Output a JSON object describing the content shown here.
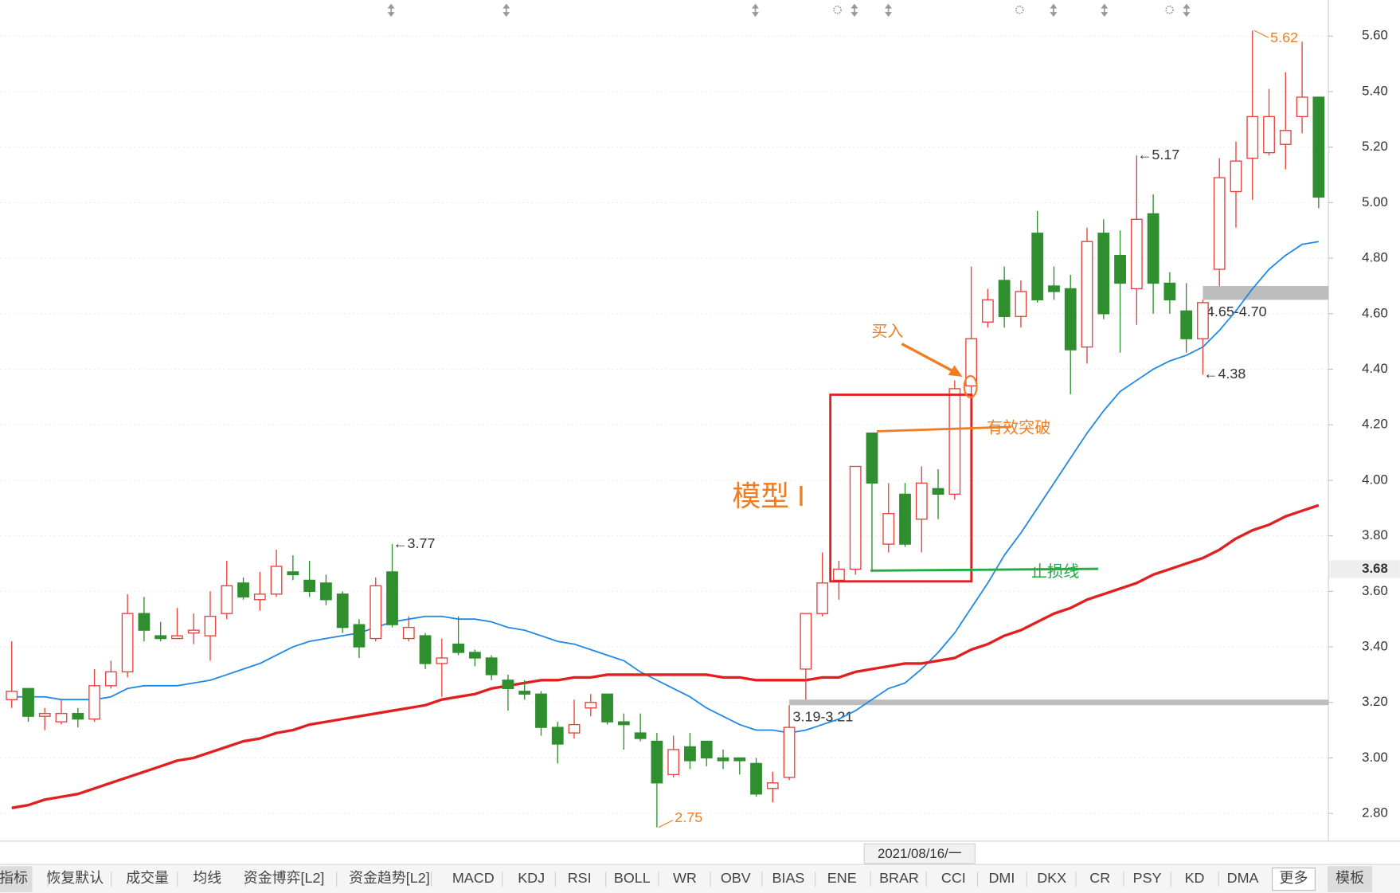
{
  "chart_data": {
    "type": "candlestick",
    "open": [
      3.21,
      3.25,
      3.15,
      3.13,
      3.16,
      3.14,
      3.26,
      3.31,
      3.52,
      3.44,
      3.43,
      3.45,
      3.44,
      3.52,
      3.63,
      3.57,
      3.59,
      3.67,
      3.64,
      3.63,
      3.59,
      3.48,
      3.43,
      3.67,
      3.43,
      3.44,
      3.34,
      3.41,
      3.38,
      3.36,
      3.28,
      3.24,
      3.23,
      3.11,
      3.09,
      3.18,
      3.23,
      3.13,
      3.09,
      3.06,
      2.94,
      3.04,
      3.06,
      3.0,
      3.0,
      2.98,
      2.89,
      2.93,
      3.32,
      3.52,
      3.64,
      3.68,
      4.17,
      3.77,
      3.95,
      3.86,
      3.97,
      3.95,
      4.34,
      4.57,
      4.72,
      4.59,
      4.89,
      4.7,
      4.69,
      4.48,
      4.89,
      4.81,
      4.69,
      4.96,
      4.71,
      4.61,
      4.51,
      4.76,
      5.04,
      5.16,
      5.18,
      5.21,
      5.31,
      5.38
    ],
    "high": [
      3.42,
      3.25,
      3.18,
      3.21,
      3.18,
      3.32,
      3.35,
      3.59,
      3.58,
      3.49,
      3.54,
      3.52,
      3.6,
      3.71,
      3.65,
      3.67,
      3.75,
      3.73,
      3.71,
      3.66,
      3.6,
      3.5,
      3.65,
      3.77,
      3.51,
      3.45,
      3.43,
      3.51,
      3.39,
      3.37,
      3.3,
      3.28,
      3.24,
      3.13,
      3.21,
      3.23,
      3.23,
      3.16,
      3.16,
      3.09,
      3.08,
      3.09,
      3.06,
      3.03,
      3.0,
      3.0,
      2.95,
      3.19,
      3.52,
      3.74,
      3.71,
      4.05,
      4.17,
      3.99,
      3.99,
      4.05,
      4.04,
      4.36,
      4.77,
      4.69,
      4.77,
      4.72,
      4.97,
      4.77,
      4.74,
      4.91,
      4.94,
      4.9,
      5.17,
      5.03,
      4.75,
      4.71,
      4.65,
      5.16,
      5.22,
      5.62,
      5.41,
      5.47,
      5.58,
      5.38
    ],
    "low": [
      3.18,
      3.13,
      3.1,
      3.12,
      3.11,
      3.13,
      3.25,
      3.29,
      3.42,
      3.42,
      3.43,
      3.41,
      3.35,
      3.5,
      3.57,
      3.53,
      3.58,
      3.64,
      3.58,
      3.55,
      3.45,
      3.36,
      3.42,
      3.47,
      3.42,
      3.32,
      3.22,
      3.37,
      3.33,
      3.28,
      3.17,
      3.21,
      3.08,
      2.98,
      3.07,
      3.15,
      3.12,
      3.03,
      3.06,
      2.75,
      2.93,
      2.96,
      2.97,
      2.96,
      2.94,
      2.86,
      2.84,
      2.92,
      3.21,
      3.51,
      3.57,
      3.66,
      3.67,
      3.74,
      3.76,
      3.74,
      3.86,
      3.93,
      4.31,
      4.55,
      4.55,
      4.55,
      4.64,
      4.65,
      4.31,
      4.42,
      4.58,
      4.46,
      4.56,
      4.6,
      4.6,
      4.46,
      4.38,
      4.7,
      4.91,
      5.01,
      5.17,
      5.12,
      5.25,
      4.98
    ],
    "close": [
      3.24,
      3.15,
      3.16,
      3.16,
      3.14,
      3.26,
      3.31,
      3.52,
      3.46,
      3.43,
      3.44,
      3.46,
      3.51,
      3.62,
      3.58,
      3.59,
      3.69,
      3.66,
      3.6,
      3.57,
      3.47,
      3.4,
      3.62,
      3.48,
      3.47,
      3.34,
      3.36,
      3.38,
      3.36,
      3.3,
      3.25,
      3.23,
      3.11,
      3.05,
      3.12,
      3.2,
      3.13,
      3.12,
      3.07,
      2.91,
      3.03,
      2.99,
      3.0,
      2.99,
      2.99,
      2.87,
      2.91,
      3.11,
      3.52,
      3.63,
      3.68,
      4.05,
      3.99,
      3.88,
      3.77,
      3.99,
      3.95,
      4.33,
      4.51,
      4.65,
      4.59,
      4.68,
      4.65,
      4.68,
      4.47,
      4.86,
      4.6,
      4.71,
      4.94,
      4.71,
      4.65,
      4.51,
      4.64,
      5.09,
      5.15,
      5.31,
      5.31,
      5.26,
      5.38,
      5.02
    ],
    "up_color": "#e8413c",
    "down_color": "#2f8f2f",
    "ma": [
      {
        "color": "#1e88e5",
        "line_width": 1.6,
        "values": [
          3.22,
          3.22,
          3.22,
          3.21,
          3.21,
          3.21,
          3.22,
          3.25,
          3.26,
          3.26,
          3.26,
          3.27,
          3.28,
          3.3,
          3.32,
          3.34,
          3.37,
          3.4,
          3.42,
          3.43,
          3.44,
          3.45,
          3.47,
          3.49,
          3.5,
          3.51,
          3.51,
          3.5,
          3.5,
          3.49,
          3.47,
          3.46,
          3.44,
          3.42,
          3.41,
          3.39,
          3.37,
          3.35,
          3.31,
          3.28,
          3.25,
          3.22,
          3.18,
          3.15,
          3.12,
          3.1,
          3.1,
          3.09,
          3.1,
          3.12,
          3.14,
          3.17,
          3.21,
          3.25,
          3.27,
          3.32,
          3.38,
          3.45,
          3.54,
          3.63,
          3.73,
          3.81,
          3.9,
          3.99,
          4.08,
          4.17,
          4.25,
          4.32,
          4.36,
          4.4,
          4.43,
          4.45,
          4.48,
          4.54,
          4.61,
          4.69,
          4.76,
          4.81,
          4.85,
          4.86
        ]
      },
      {
        "color": "#e02020",
        "line_width": 3,
        "values": [
          2.82,
          2.83,
          2.85,
          2.86,
          2.87,
          2.89,
          2.91,
          2.93,
          2.95,
          2.97,
          2.99,
          3.0,
          3.02,
          3.04,
          3.06,
          3.07,
          3.09,
          3.1,
          3.12,
          3.13,
          3.14,
          3.15,
          3.16,
          3.17,
          3.18,
          3.19,
          3.21,
          3.22,
          3.23,
          3.25,
          3.26,
          3.27,
          3.28,
          3.28,
          3.29,
          3.29,
          3.3,
          3.3,
          3.3,
          3.3,
          3.3,
          3.3,
          3.3,
          3.29,
          3.29,
          3.28,
          3.28,
          3.28,
          3.28,
          3.29,
          3.29,
          3.31,
          3.32,
          3.33,
          3.34,
          3.34,
          3.35,
          3.36,
          3.39,
          3.41,
          3.44,
          3.46,
          3.49,
          3.52,
          3.54,
          3.57,
          3.59,
          3.61,
          3.63,
          3.66,
          3.68,
          3.7,
          3.72,
          3.75,
          3.79,
          3.82,
          3.84,
          3.87,
          3.89,
          3.91
        ]
      }
    ],
    "ylim": [
      2.7,
      5.73
    ],
    "yticks": [
      {
        "value": 2.8,
        "label": "2.80"
      },
      {
        "value": 3.0,
        "label": "3.00"
      },
      {
        "value": 3.2,
        "label": "3.20"
      },
      {
        "value": 3.4,
        "label": "3.40"
      },
      {
        "value": 3.6,
        "label": "3.60"
      },
      {
        "value": 3.8,
        "label": "3.80"
      },
      {
        "value": 4.0,
        "label": "4.00"
      },
      {
        "value": 4.2,
        "label": "4.20"
      },
      {
        "value": 4.4,
        "label": "4.40"
      },
      {
        "value": 4.6,
        "label": "4.60"
      },
      {
        "value": 4.8,
        "label": "4.80"
      },
      {
        "value": 5.0,
        "label": "5.00"
      },
      {
        "value": 5.2,
        "label": "5.20"
      },
      {
        "value": 5.4,
        "label": "5.40"
      },
      {
        "value": 5.6,
        "label": "5.60"
      }
    ],
    "grid": true,
    "current_price": 3.68,
    "crosshair_date": "2021/08/16/一",
    "price_marks": [
      {
        "label": "←3.77",
        "value": 3.77,
        "color": "#333333"
      },
      {
        "label": "2.75",
        "value": 2.75,
        "color": "#f07d21"
      },
      {
        "label": "←5.17",
        "value": 5.17,
        "color": "#333333"
      },
      {
        "label": "←4.38",
        "value": 4.38,
        "color": "#333333"
      },
      {
        "label": "5.62",
        "value": 5.62,
        "color": "#f07d21"
      }
    ],
    "gaps": [
      {
        "label": "3.19-3.21",
        "low": 3.19,
        "high": 3.21
      },
      {
        "label": "4.65-4.70",
        "low": 4.65,
        "high": 4.7
      }
    ],
    "notes": [
      "模型 I",
      "买入",
      "有效突破",
      "止损线"
    ]
  },
  "toolbar": {
    "tabs": [
      "指标",
      "恢复默认",
      "成交量",
      "均线",
      "资金博弈[L2]",
      "资金趋势[L2]",
      "MACD",
      "KDJ",
      "RSI",
      "BOLL",
      "WR",
      "OBV",
      "BIAS",
      "ENE",
      "BRAR",
      "CCI",
      "DMI",
      "DKX",
      "CR",
      "PSY",
      "KD",
      "DMA",
      "更多",
      "模板"
    ]
  }
}
